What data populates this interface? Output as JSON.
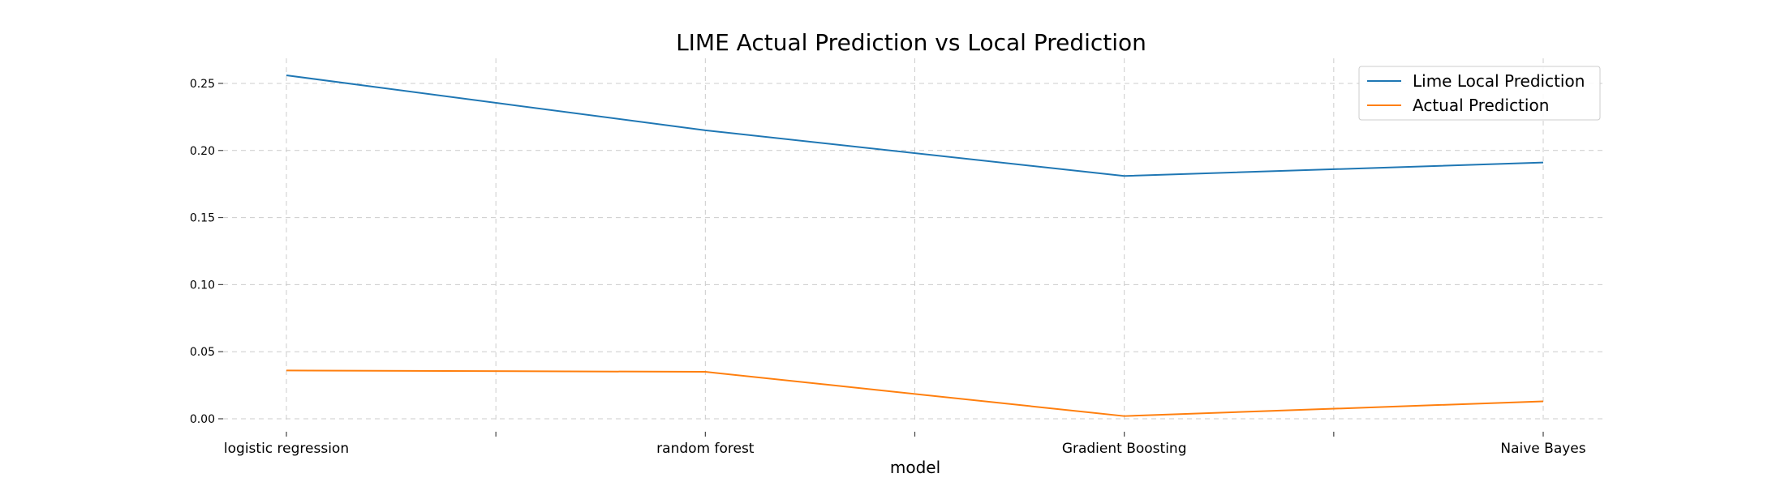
{
  "chart_data": {
    "type": "line",
    "title": "LIME Actual Prediction vs Local Prediction",
    "xlabel": "model",
    "ylabel": "",
    "categories": [
      "logistic regression",
      "random forest",
      "Gradient Boosting",
      "Naive Bayes"
    ],
    "yticks": [
      "0.00",
      "0.05",
      "0.10",
      "0.15",
      "0.20",
      "0.25"
    ],
    "ylim": [
      -0.005,
      0.27
    ],
    "grid": true,
    "legend_position": "top-right",
    "series": [
      {
        "name": "Lime Local Prediction",
        "color": "#1f77b4",
        "values": [
          0.256,
          0.215,
          0.181,
          0.191
        ]
      },
      {
        "name": "Actual Prediction",
        "color": "#ff7f0e",
        "values": [
          0.036,
          0.035,
          0.002,
          0.013
        ]
      }
    ]
  }
}
